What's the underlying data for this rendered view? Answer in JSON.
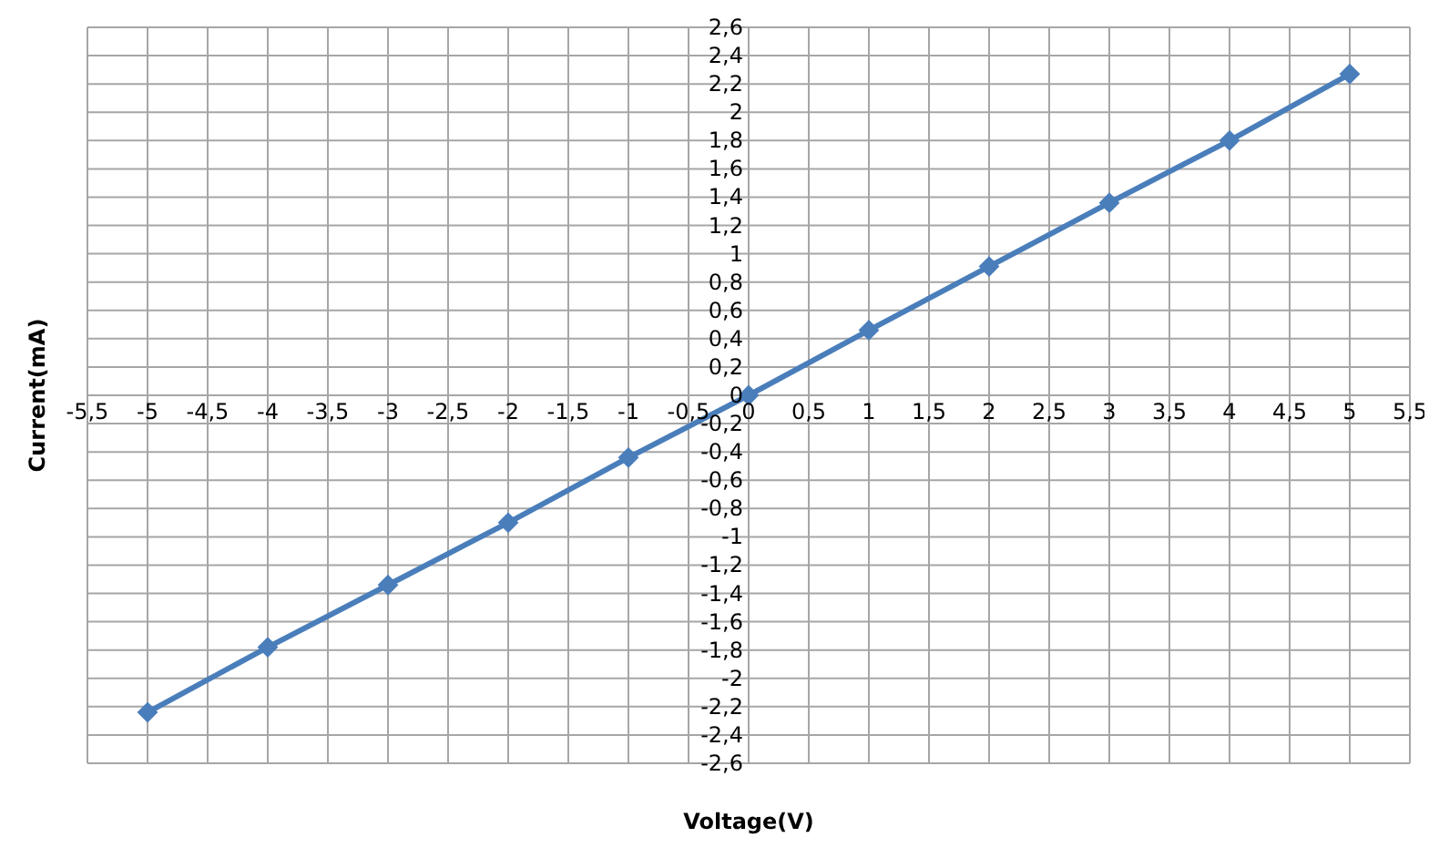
{
  "chart_data": {
    "type": "line",
    "xlabel": "Voltage(V)",
    "ylabel": "Current(mA)",
    "x": [
      -5,
      -4,
      -3,
      -2,
      -1,
      0,
      1,
      2,
      3,
      4,
      5
    ],
    "series": [
      {
        "color": "#4a7ebb",
        "values": [
          -2.24,
          -1.78,
          -1.34,
          -0.9,
          -0.44,
          0,
          0.46,
          0.91,
          1.36,
          1.8,
          2.27
        ]
      }
    ],
    "xlim": [
      -5.5,
      5.5
    ],
    "xticks": [
      {
        "value": -5.5,
        "label": "-5,5"
      },
      -5,
      {
        "value": -4.5,
        "label": "-4,5"
      },
      -4,
      {
        "value": -3.5,
        "label": "-3,5"
      },
      -3,
      {
        "value": -2.5,
        "label": "-2,5"
      },
      -2,
      {
        "value": -1.5,
        "label": "-1,5"
      },
      -1,
      {
        "value": -0.5,
        "label": "-0,5"
      },
      0,
      {
        "value": 0.5,
        "label": "0,5"
      },
      1,
      {
        "value": 1.5,
        "label": "1,5"
      },
      2,
      {
        "value": 2.5,
        "label": "2,5"
      },
      3,
      {
        "value": 3.5,
        "label": "3,5"
      },
      4,
      {
        "value": 4.5,
        "label": "4,5"
      },
      5,
      {
        "value": 5.5,
        "label": "5,5"
      }
    ],
    "ylim": [
      -2.6,
      2.6
    ],
    "yticks": [
      {
        "value": -2.6,
        "label": "-2,6"
      },
      {
        "value": -2.4,
        "label": "-2,4"
      },
      {
        "value": -2.2,
        "label": "-2,2"
      },
      -2,
      {
        "value": -1.8,
        "label": "-1,8"
      },
      {
        "value": -1.6,
        "label": "-1,6"
      },
      {
        "value": -1.4,
        "label": "-1,4"
      },
      {
        "value": -1.2,
        "label": "-1,2"
      },
      -1,
      {
        "value": -0.8,
        "label": "-0,8"
      },
      {
        "value": -0.6,
        "label": "-0,6"
      },
      {
        "value": -0.4,
        "label": "-0,4"
      },
      {
        "value": -0.2,
        "label": "-0,2"
      },
      0,
      {
        "value": 0.2,
        "label": "0,2"
      },
      {
        "value": 0.4,
        "label": "0,4"
      },
      {
        "value": 0.6,
        "label": "0,6"
      },
      {
        "value": 0.8,
        "label": "0,8"
      },
      1,
      {
        "value": 1.2,
        "label": "1,2"
      },
      {
        "value": 1.4,
        "label": "1,4"
      },
      {
        "value": 1.6,
        "label": "1,6"
      },
      {
        "value": 1.8,
        "label": "1,8"
      },
      2,
      {
        "value": 2.2,
        "label": "2,2"
      },
      {
        "value": 2.4,
        "label": "2,4"
      },
      {
        "value": 2.6,
        "label": "2,6"
      }
    ],
    "grid": true,
    "marker": "diamond",
    "line_style": "solid",
    "legend": false
  }
}
